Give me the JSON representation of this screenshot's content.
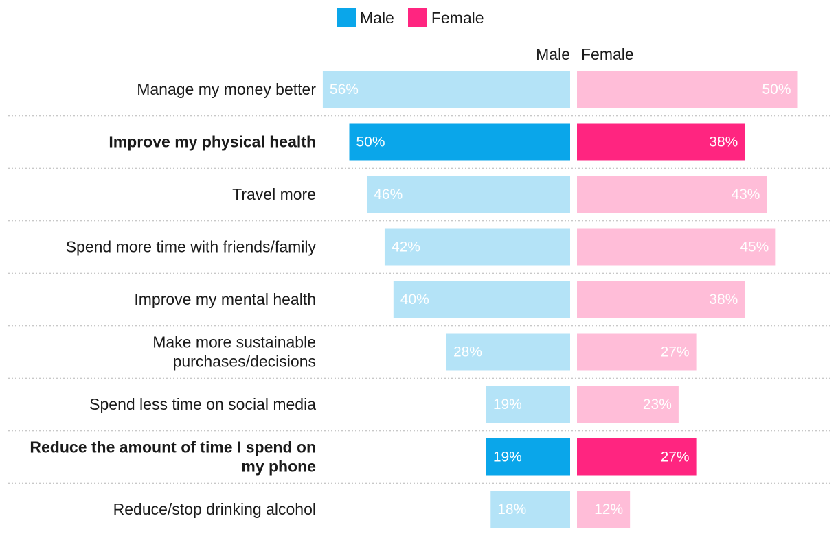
{
  "legend": {
    "male_label": "Male",
    "female_label": "Female"
  },
  "headers": {
    "male": "Male",
    "female": "Female"
  },
  "colors": {
    "male_highlight": "#0aa6ea",
    "male_light": "#b4e3f7",
    "female_highlight": "#ff2580",
    "female_light": "#ffbdd8"
  },
  "chart_data": {
    "type": "bar",
    "orientation": "horizontal-butterfly",
    "xlim": [
      0,
      56
    ],
    "categories": [
      [
        "Manage my money better"
      ],
      [
        "Improve my physical health"
      ],
      [
        "Travel more"
      ],
      [
        "Spend more time with friends/family"
      ],
      [
        "Improve my mental health"
      ],
      [
        "Make more sustainable",
        "purchases/decisions"
      ],
      [
        "Spend less time on social media"
      ],
      [
        "Reduce the amount of time I spend on",
        "my phone"
      ],
      [
        "Reduce/stop drinking alcohol"
      ]
    ],
    "highlighted": [
      false,
      true,
      false,
      false,
      false,
      false,
      false,
      true,
      false
    ],
    "series": [
      {
        "name": "Male",
        "values": [
          56,
          50,
          46,
          42,
          40,
          28,
          19,
          19,
          18
        ],
        "labels": [
          "56%",
          "50%",
          "46%",
          "42%",
          "40%",
          "28%",
          "19%",
          "19%",
          "18%"
        ]
      },
      {
        "name": "Female",
        "values": [
          50,
          38,
          43,
          45,
          38,
          27,
          23,
          27,
          12
        ],
        "labels": [
          "50%",
          "38%",
          "43%",
          "45%",
          "38%",
          "27%",
          "23%",
          "27%",
          "12%"
        ]
      }
    ]
  }
}
